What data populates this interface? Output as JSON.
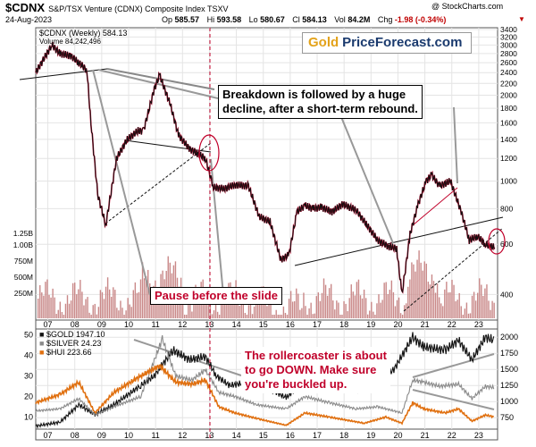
{
  "header": {
    "symbol": "$CDNX",
    "description": "S&P/TSX Venture (CDNX) Composite Index TSXV",
    "date": "24-Aug-2023",
    "open_label": "Op",
    "open": "585.57",
    "high_label": "Hi",
    "high": "593.58",
    "low_label": "Lo",
    "low": "580.67",
    "close_label": "Cl",
    "close": "584.13",
    "volume_label": "Vol",
    "volume": "84.2M",
    "change_label": "Chg",
    "change": "-1.98 (-0.34%)",
    "watermark": "@ StockCharts.com",
    "change_arrow": "▼"
  },
  "top_legend": {
    "series": "$CDNX (Weekly) 584.13",
    "volume": "Volume 84,242,496"
  },
  "bottom_legend": [
    {
      "label": "$GOLD 1947.10",
      "color": "#111111"
    },
    {
      "label": "$SILVER 24.23",
      "color": "#8a8a8a"
    },
    {
      "label": "$HUI 223.66",
      "color": "#e07010"
    }
  ],
  "logo": {
    "part1": "Gold",
    "part2": "PriceForecast.com"
  },
  "annotations": {
    "breakdown": [
      "Breakdown is followed by a huge",
      "decline, after a short-term rebound."
    ],
    "pause": "Pause before the slide",
    "rollercoaster": [
      "The rollercoaster is about",
      "to go DOWN. Make sure",
      "you're buckled up."
    ]
  },
  "colors": {
    "price_up": "#111111",
    "price_down": "#c0002a",
    "volume": "#c98888",
    "hui": "#e07010",
    "silver": "#8a8a8a",
    "gold": "#111111",
    "grid": "#e4e4e4",
    "highlight": "#c0002a"
  },
  "chart_data": [
    {
      "type": "line",
      "title": "$CDNX (Weekly)",
      "x_tick_labels": [
        "07",
        "08",
        "09",
        "10",
        "11",
        "12",
        "13",
        "14",
        "15",
        "16",
        "17",
        "18",
        "19",
        "20",
        "21",
        "22",
        "23"
      ],
      "y_scale": "log",
      "y_tick_labels": [
        "3400",
        "3200",
        "3000",
        "2800",
        "2600",
        "2400",
        "2200",
        "2000",
        "1800",
        "1600",
        "1400",
        "1200",
        "1000",
        "800",
        "600",
        "400"
      ],
      "ylim": [
        330,
        3400
      ],
      "series": [
        {
          "name": "$CDNX",
          "x": [
            2006.6,
            2007.2,
            2007.5,
            2007.9,
            2008.2,
            2008.5,
            2008.65,
            2008.9,
            2009.2,
            2009.6,
            2010.0,
            2010.4,
            2010.6,
            2011.0,
            2011.2,
            2011.6,
            2011.9,
            2012.3,
            2012.6,
            2012.9,
            2013.2,
            2013.6,
            2014.0,
            2014.5,
            2014.9,
            2015.3,
            2015.7,
            2016.0,
            2016.3,
            2016.6,
            2016.9,
            2017.2,
            2017.6,
            2018.0,
            2018.5,
            2018.9,
            2019.3,
            2019.7,
            2020.0,
            2020.2,
            2020.5,
            2020.8,
            2021.1,
            2021.3,
            2021.6,
            2022.0,
            2022.4,
            2022.7,
            2023.0,
            2023.3,
            2023.64
          ],
          "values": [
            2400,
            3000,
            2800,
            2750,
            2600,
            2450,
            1600,
            900,
            700,
            1200,
            1400,
            1500,
            1500,
            2100,
            2350,
            1850,
            1450,
            1300,
            1250,
            1200,
            950,
            940,
            970,
            960,
            750,
            720,
            530,
            550,
            780,
            820,
            800,
            810,
            780,
            830,
            790,
            700,
            620,
            590,
            580,
            400,
            650,
            830,
            1000,
            1050,
            960,
            1000,
            780,
            620,
            640,
            600,
            584.13
          ]
        }
      ],
      "volume": {
        "ylabel_ticks": [
          "1.25B",
          "1.00B",
          "750M",
          "500M",
          "250M"
        ],
        "latest": 84242496
      }
    },
    {
      "type": "line",
      "x_tick_labels": [
        "07",
        "08",
        "09",
        "10",
        "11",
        "12",
        "13",
        "14",
        "15",
        "16",
        "17",
        "18",
        "19",
        "20",
        "21",
        "22",
        "23"
      ],
      "y_tick_labels_left": [
        "50",
        "40",
        "30",
        "20",
        "10"
      ],
      "y_tick_labels_right": [
        "2000",
        "1750",
        "1500",
        "1250",
        "1000",
        "750"
      ],
      "ylim_left": [
        5,
        52
      ],
      "ylim_right": [
        600,
        2100
      ],
      "series": [
        {
          "name": "$GOLD",
          "axis": "right",
          "x": [
            2006.6,
            2007.5,
            2008.2,
            2008.8,
            2009.5,
            2010.5,
            2011.0,
            2011.7,
            2012.3,
            2012.9,
            2013.3,
            2013.8,
            2014.5,
            2015.5,
            2015.9,
            2016.5,
            2017.5,
            2018.6,
            2019.3,
            2019.9,
            2020.6,
            2021.0,
            2021.8,
            2022.3,
            2022.8,
            2023.3,
            2023.64
          ],
          "values": [
            620,
            680,
            950,
            800,
            950,
            1250,
            1400,
            1800,
            1650,
            1700,
            1400,
            1250,
            1300,
            1150,
            1060,
            1300,
            1260,
            1190,
            1300,
            1500,
            2000,
            1850,
            1800,
            1950,
            1650,
            2000,
            1947.1
          ]
        },
        {
          "name": "$SILVER",
          "axis": "left",
          "x": [
            2006.6,
            2007.5,
            2008.2,
            2008.8,
            2009.5,
            2010.5,
            2011.3,
            2011.8,
            2012.4,
            2012.9,
            2013.4,
            2014.0,
            2014.8,
            2015.9,
            2016.6,
            2017.5,
            2018.5,
            2019.3,
            2020.2,
            2020.6,
            2021.0,
            2021.6,
            2022.3,
            2022.8,
            2023.3,
            2023.64
          ],
          "values": [
            13,
            14,
            19,
            11,
            15,
            20,
            48,
            30,
            28,
            33,
            22,
            20,
            16,
            14,
            20,
            17,
            14,
            15,
            12,
            28,
            27,
            25,
            26,
            19,
            25,
            24.23
          ]
        },
        {
          "name": "$HUI",
          "axis": "left",
          "x": [
            2006.6,
            2007.5,
            2008.2,
            2008.8,
            2009.5,
            2010.5,
            2011.2,
            2011.8,
            2012.4,
            2012.9,
            2013.4,
            2014.0,
            2014.9,
            2015.9,
            2016.6,
            2017.5,
            2018.8,
            2019.6,
            2020.2,
            2020.6,
            2021.0,
            2021.8,
            2022.3,
            2022.8,
            2023.3,
            2023.64
          ],
          "values": [
            17,
            21,
            27,
            12,
            22,
            30,
            35,
            27,
            26,
            28,
            15,
            12,
            9,
            6,
            12,
            10,
            7,
            10,
            7,
            17,
            14,
            12,
            14,
            8,
            11,
            10
          ]
        }
      ]
    }
  ]
}
